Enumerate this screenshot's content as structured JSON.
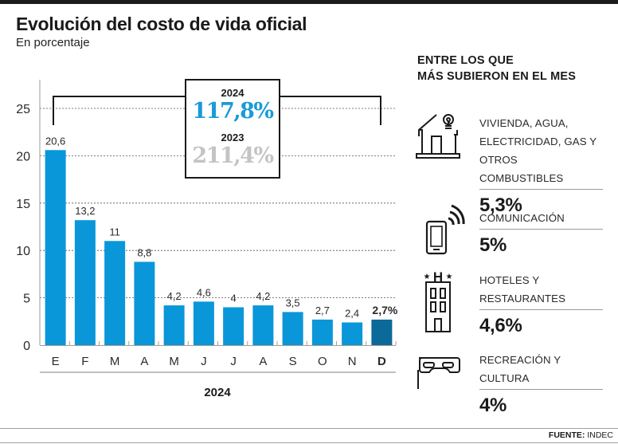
{
  "header": {
    "title": "Evolución del costo de vida oficial",
    "subtitle": "En porcentaje"
  },
  "summary": {
    "year_current": "2024",
    "value_current": "117,8%",
    "year_previous": "2023",
    "value_previous": "211,4%",
    "color_current": "#1a9ad6",
    "color_previous": "#c4c4c4"
  },
  "chart_data": {
    "type": "bar",
    "title": "Evolución del costo de vida oficial",
    "subtitle": "En porcentaje",
    "xlabel": "2024",
    "ylabel": "",
    "ylim": [
      0,
      25
    ],
    "yticks": [
      0,
      5,
      10,
      15,
      20,
      25
    ],
    "ytick_labels": [
      "0",
      "5",
      "10",
      "15",
      "20",
      "25"
    ],
    "grid": true,
    "categories": [
      "E",
      "F",
      "M",
      "A",
      "M",
      "J",
      "J",
      "A",
      "S",
      "O",
      "N",
      "D"
    ],
    "values": [
      20.6,
      13.2,
      11,
      8.8,
      4.2,
      4.6,
      4,
      4.2,
      3.5,
      2.7,
      2.4,
      2.7
    ],
    "value_labels": [
      "20,6",
      "13,2",
      "11",
      "8,8",
      "4,2",
      "4,6",
      "4",
      "4,2",
      "3,5",
      "2,7",
      "2,4",
      "2,7%"
    ],
    "highlight_index": 11,
    "bar_color": "#0a97d9",
    "highlight_color": "#0c6a9a"
  },
  "sidebar": {
    "heading_line1": "ENTRE LOS QUE",
    "heading_line2": "MÁS SUBIERON EN EL MES",
    "categories": [
      {
        "icon": "house-lightbulb-icon",
        "label_lines": [
          "VIVIENDA, AGUA,",
          "ELECTRICIDAD, GAS Y",
          "OTROS COMBUSTIBLES"
        ],
        "value": "5,3%"
      },
      {
        "icon": "smartphone-signal-icon",
        "label_lines": [
          "COMUNICACIÓN"
        ],
        "value": "5%"
      },
      {
        "icon": "hotel-building-icon",
        "label_lines": [
          "HOTELES Y",
          "RESTAURANTES"
        ],
        "value": "4,6%"
      },
      {
        "icon": "theater-mask-icon",
        "label_lines": [
          "RECREACIÓN Y CULTURA"
        ],
        "value": "4%"
      }
    ]
  },
  "footer": {
    "source_label": "FUENTE:",
    "source_value": "INDEC"
  }
}
